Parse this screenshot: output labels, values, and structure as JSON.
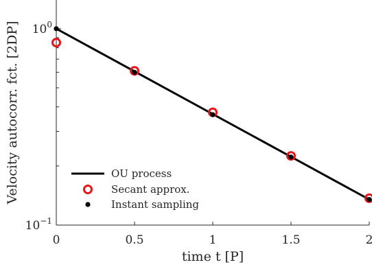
{
  "chart_data": {
    "type": "line",
    "xlabel": "time t [P]",
    "ylabel": "Velocity autocorr. fct. [2DP]",
    "xlim": [
      0,
      2
    ],
    "ylim": [
      0.1,
      1.4
    ],
    "yscale": "log",
    "grid": false,
    "legend_position": "bottom-left",
    "x_ticks": [
      {
        "value": 0,
        "label": "0"
      },
      {
        "value": 0.5,
        "label": "0.5"
      },
      {
        "value": 1,
        "label": "1"
      },
      {
        "value": 1.5,
        "label": "1.5"
      },
      {
        "value": 2,
        "label": "2"
      }
    ],
    "y_ticks": [
      {
        "value": 1,
        "label_base": "10",
        "label_exp": "0"
      },
      {
        "value": 0.1,
        "label_base": "10",
        "label_exp": "−1"
      }
    ],
    "series": [
      {
        "name": "OU process",
        "kind": "line",
        "color": "#000000",
        "x": [
          0,
          2
        ],
        "y": [
          1.0,
          0.135
        ]
      },
      {
        "name": "Secant approx.",
        "kind": "marker-open",
        "color": "#e8141c",
        "x": [
          0,
          0.5,
          1,
          1.5,
          2
        ],
        "y": [
          0.85,
          0.61,
          0.375,
          0.225,
          0.137
        ]
      },
      {
        "name": "Instant sampling",
        "kind": "marker-filled",
        "color": "#000000",
        "x": [
          0,
          0.5,
          1,
          1.5,
          2
        ],
        "y": [
          1.0,
          0.6,
          0.365,
          0.222,
          0.135
        ]
      }
    ]
  }
}
